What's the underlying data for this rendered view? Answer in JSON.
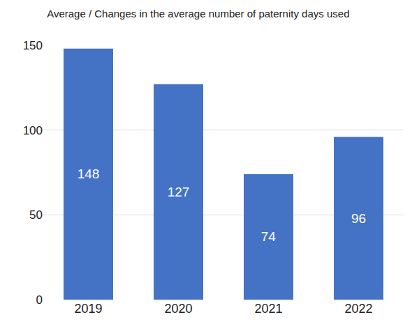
{
  "chart_data": {
    "type": "bar",
    "title": "Average / Changes in the average number of paternity days used",
    "categories": [
      "2019",
      "2020",
      "2021",
      "2022"
    ],
    "values": [
      148,
      127,
      74,
      96
    ],
    "color": "#4472c4",
    "ylim": [
      0,
      150
    ],
    "yticks": [
      0,
      50,
      100,
      150
    ],
    "grid": true,
    "data_labels": true
  }
}
